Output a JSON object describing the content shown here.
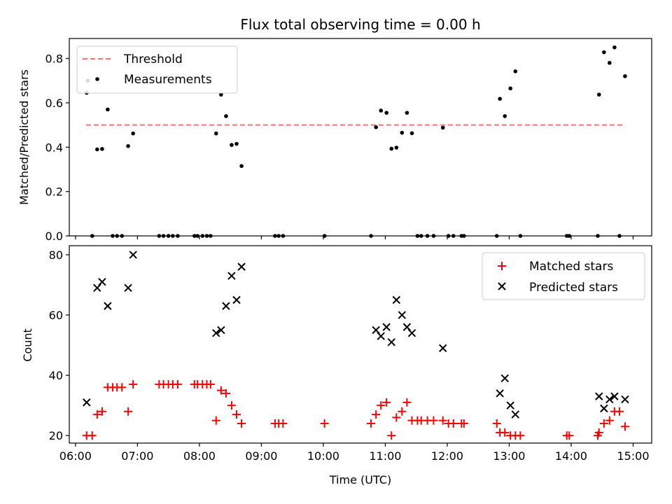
{
  "chart_data": {
    "title": "Flux total observing time = 0.00 h",
    "xlabel": "Time (UTC)",
    "xlim": [
      5.9,
      15.3
    ],
    "xticks": [
      6,
      7,
      8,
      9,
      10,
      11,
      12,
      13,
      14,
      15
    ],
    "xtick_labels": [
      "06:00",
      "07:00",
      "08:00",
      "09:00",
      "10:00",
      "11:00",
      "12:00",
      "13:00",
      "14:00",
      "15:00"
    ],
    "colors": {
      "threshold": "#ff7070",
      "measurements": "#000000",
      "matched": "#ff0000",
      "predicted": "#000000"
    },
    "panels": [
      {
        "type": "scatter",
        "name": "ratio-panel",
        "ylabel": "Matched/Predicted stars",
        "ylim": [
          0,
          0.89
        ],
        "yticks": [
          0.0,
          0.2,
          0.4,
          0.6,
          0.8
        ],
        "ytick_labels": [
          "0.0",
          "0.2",
          "0.4",
          "0.6",
          "0.8"
        ],
        "legend": {
          "placement": "upper-left",
          "entries": [
            {
              "label": "Threshold"
            },
            {
              "label": "Measurements"
            }
          ]
        },
        "threshold": {
          "y": 0.5,
          "x": [
            6.17,
            14.87
          ]
        },
        "series": [
          {
            "name": "Measurements",
            "points": [
              [
                6.18,
                0.645
              ],
              [
                6.2,
                0.7
              ],
              [
                6.27,
                0.0
              ],
              [
                6.35,
                0.39
              ],
              [
                6.43,
                0.392
              ],
              [
                6.52,
                0.57
              ],
              [
                6.6,
                0.0
              ],
              [
                6.67,
                0.0
              ],
              [
                6.75,
                0.0
              ],
              [
                6.85,
                0.405
              ],
              [
                6.93,
                0.462
              ],
              [
                7.35,
                0.0
              ],
              [
                7.42,
                0.0
              ],
              [
                7.5,
                0.0
              ],
              [
                7.57,
                0.0
              ],
              [
                7.65,
                0.0
              ],
              [
                7.92,
                0.0
              ],
              [
                7.97,
                0.0
              ],
              [
                8.05,
                0.0
              ],
              [
                8.12,
                0.0
              ],
              [
                8.18,
                0.0
              ],
              [
                8.27,
                0.462
              ],
              [
                8.35,
                0.637
              ],
              [
                8.43,
                0.54
              ],
              [
                8.52,
                0.41
              ],
              [
                8.6,
                0.415
              ],
              [
                8.68,
                0.315
              ],
              [
                9.22,
                0.0
              ],
              [
                9.28,
                0.0
              ],
              [
                9.35,
                0.0
              ],
              [
                10.02,
                0.0
              ],
              [
                10.77,
                0.0
              ],
              [
                10.85,
                0.49
              ],
              [
                10.93,
                0.565
              ],
              [
                11.02,
                0.555
              ],
              [
                11.1,
                0.393
              ],
              [
                11.18,
                0.398
              ],
              [
                11.27,
                0.465
              ],
              [
                11.35,
                0.555
              ],
              [
                11.43,
                0.463
              ],
              [
                11.52,
                0.0
              ],
              [
                11.58,
                0.0
              ],
              [
                11.68,
                0.0
              ],
              [
                11.78,
                0.0
              ],
              [
                11.93,
                0.488
              ],
              [
                12.02,
                0.0
              ],
              [
                12.1,
                0.0
              ],
              [
                12.23,
                0.0
              ],
              [
                12.27,
                0.0
              ],
              [
                12.8,
                0.0
              ],
              [
                12.85,
                0.618
              ],
              [
                12.93,
                0.54
              ],
              [
                13.02,
                0.665
              ],
              [
                13.1,
                0.742
              ],
              [
                13.18,
                0.0
              ],
              [
                13.93,
                0.0
              ],
              [
                13.97,
                0.0
              ],
              [
                14.43,
                0.0
              ],
              [
                14.45,
                0.637
              ],
              [
                14.53,
                0.828
              ],
              [
                14.62,
                0.78
              ],
              [
                14.7,
                0.85
              ],
              [
                14.78,
                0.0
              ],
              [
                14.87,
                0.72
              ]
            ]
          }
        ]
      },
      {
        "type": "scatter",
        "name": "count-panel",
        "ylabel": "Count",
        "ylim": [
          17.5,
          83
        ],
        "yticks": [
          20,
          40,
          60,
          80
        ],
        "ytick_labels": [
          "20",
          "40",
          "60",
          "80"
        ],
        "legend": {
          "placement": "upper-right",
          "entries": [
            {
              "label": "Matched stars"
            },
            {
              "label": "Predicted stars"
            }
          ]
        },
        "series": [
          {
            "name": "Matched stars",
            "marker": "plus",
            "points": [
              [
                6.18,
                20
              ],
              [
                6.27,
                20
              ],
              [
                6.35,
                27
              ],
              [
                6.43,
                28
              ],
              [
                6.52,
                36
              ],
              [
                6.6,
                36
              ],
              [
                6.67,
                36
              ],
              [
                6.75,
                36
              ],
              [
                6.85,
                28
              ],
              [
                6.93,
                37
              ],
              [
                7.35,
                37
              ],
              [
                7.42,
                37
              ],
              [
                7.5,
                37
              ],
              [
                7.57,
                37
              ],
              [
                7.65,
                37
              ],
              [
                7.92,
                37
              ],
              [
                7.97,
                37
              ],
              [
                8.05,
                37
              ],
              [
                8.12,
                37
              ],
              [
                8.18,
                37
              ],
              [
                8.27,
                25
              ],
              [
                8.35,
                35
              ],
              [
                8.43,
                34
              ],
              [
                8.52,
                30
              ],
              [
                8.6,
                27
              ],
              [
                8.68,
                24
              ],
              [
                9.22,
                24
              ],
              [
                9.28,
                24
              ],
              [
                9.35,
                24
              ],
              [
                10.02,
                24
              ],
              [
                10.77,
                24
              ],
              [
                10.85,
                27
              ],
              [
                10.93,
                30
              ],
              [
                11.02,
                31
              ],
              [
                11.1,
                20
              ],
              [
                11.18,
                26
              ],
              [
                11.27,
                28
              ],
              [
                11.35,
                31
              ],
              [
                11.43,
                25
              ],
              [
                11.52,
                25
              ],
              [
                11.58,
                25
              ],
              [
                11.68,
                25
              ],
              [
                11.78,
                25
              ],
              [
                11.93,
                25
              ],
              [
                12.02,
                24
              ],
              [
                12.1,
                24
              ],
              [
                12.23,
                24
              ],
              [
                12.27,
                24
              ],
              [
                12.8,
                24
              ],
              [
                12.85,
                21
              ],
              [
                12.93,
                21
              ],
              [
                13.02,
                20
              ],
              [
                13.1,
                20
              ],
              [
                13.18,
                20
              ],
              [
                13.93,
                20
              ],
              [
                13.97,
                20
              ],
              [
                14.43,
                20
              ],
              [
                14.45,
                21
              ],
              [
                14.53,
                24
              ],
              [
                14.62,
                25
              ],
              [
                14.7,
                28
              ],
              [
                14.78,
                28
              ],
              [
                14.87,
                23
              ]
            ]
          },
          {
            "name": "Predicted stars",
            "marker": "x",
            "points": [
              [
                6.18,
                31
              ],
              [
                6.35,
                69
              ],
              [
                6.43,
                71
              ],
              [
                6.52,
                63
              ],
              [
                6.85,
                69
              ],
              [
                6.93,
                80
              ],
              [
                8.27,
                54
              ],
              [
                8.35,
                55
              ],
              [
                8.43,
                63
              ],
              [
                8.52,
                73
              ],
              [
                8.6,
                65
              ],
              [
                8.68,
                76
              ],
              [
                10.85,
                55
              ],
              [
                10.93,
                53
              ],
              [
                11.02,
                56
              ],
              [
                11.1,
                51
              ],
              [
                11.18,
                65
              ],
              [
                11.27,
                60
              ],
              [
                11.35,
                56
              ],
              [
                11.43,
                54
              ],
              [
                11.93,
                49
              ],
              [
                12.85,
                34
              ],
              [
                12.93,
                39
              ],
              [
                13.02,
                30
              ],
              [
                13.1,
                27
              ],
              [
                14.45,
                33
              ],
              [
                14.53,
                29
              ],
              [
                14.62,
                32
              ],
              [
                14.7,
                33
              ],
              [
                14.87,
                32
              ]
            ]
          }
        ]
      }
    ]
  }
}
